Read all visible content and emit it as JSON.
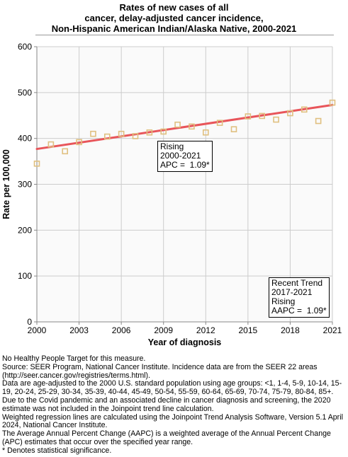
{
  "title_lines": [
    "Rates of new cases of all",
    "cancer, delay-adjusted cancer incidence,",
    "Non-Hispanic American Indian/Alaska Native,  2000-2021"
  ],
  "chart_data": {
    "type": "scatter",
    "xlabel": "Year of diagnosis",
    "ylabel": "Rate per 100,000",
    "xlim": [
      2000,
      2021
    ],
    "ylim": [
      0,
      600
    ],
    "x_ticks": [
      2000,
      2003,
      2006,
      2009,
      2012,
      2015,
      2018,
      2021
    ],
    "y_ticks": [
      0,
      100,
      200,
      300,
      400,
      500,
      600
    ],
    "grid": true,
    "observed": {
      "x": [
        2000,
        2001,
        2002,
        2003,
        2004,
        2005,
        2006,
        2007,
        2008,
        2009,
        2010,
        2011,
        2012,
        2013,
        2014,
        2015,
        2016,
        2017,
        2018,
        2019,
        2020,
        2021
      ],
      "y": [
        345,
        387,
        372,
        392,
        410,
        404,
        410,
        405,
        413,
        415,
        430,
        426,
        413,
        434,
        420,
        448,
        449,
        441,
        455,
        463,
        438,
        478
      ],
      "color": "#e0c080"
    },
    "trend": {
      "x": [
        2000,
        2021
      ],
      "y": [
        377,
        473
      ],
      "color": "#e8555a"
    }
  },
  "trend_box": {
    "lines": [
      "Rising",
      "2000-2021",
      "APC =  1.09*"
    ]
  },
  "recent_box": {
    "lines": [
      "Recent Trend",
      "2017-2021",
      "Rising",
      "AAPC =  1.09*"
    ]
  },
  "notes": [
    "No Healthy People Target for this measure.",
    "Source: SEER Program, National Cancer Institute. Incidence data are from the SEER 22 areas (http://seer.cancer.gov/registries/terms.html).",
    "Data are age-adjusted to the 2000 U.S. standard population using age groups: <1, 1-4, 5-9, 10-14, 15-19, 20-24, 25-29, 30-34, 35-39, 40-44, 45-49, 50-54, 55-59, 60-64, 65-69, 70-74, 75-79, 80-84, 85+.",
    "Due to the Covid pandemic and an associated decline in cancer diagnosis and screening, the 2020 estimate was not included in the Joinpoint trend line calculation.",
    "Weighted regression lines are calculated using the Joinpoint Trend Analysis Software, Version 5.1 April 2024, National Cancer Institute.",
    "The Average Annual Percent Change (AAPC) is a weighted average of the Annual Percent Change (APC) estimates that occur over the specified year range.",
    "* Denotes statistical significance."
  ]
}
